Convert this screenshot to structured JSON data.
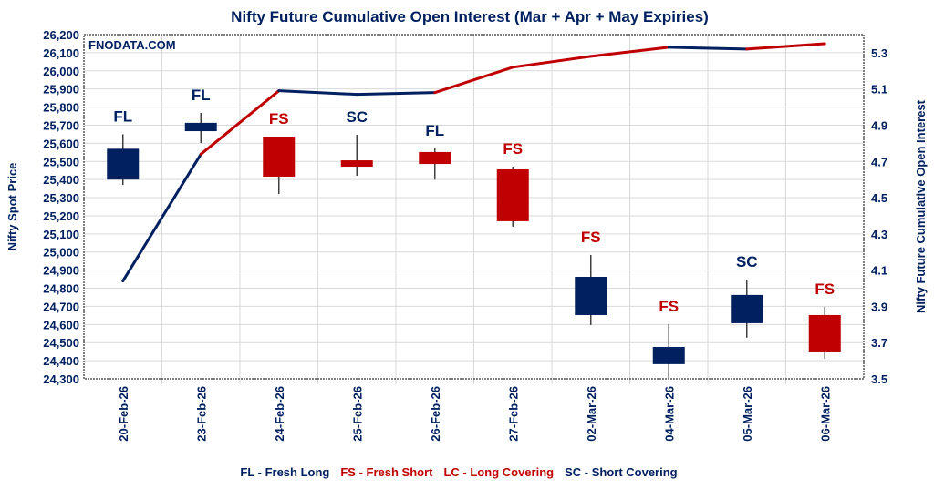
{
  "chart_data": {
    "type": "candlestick+line",
    "title": "Nifty Future Cumulative Open Interest (Mar + Apr + May Expiries)",
    "watermark": "FNODATA.COM",
    "ylabel": "Nifty Spot Price",
    "y2label": "Nifty Future Cumulative Open Interest",
    "ylim": [
      24300,
      26200
    ],
    "y2lim": [
      3.5,
      5.4
    ],
    "yticks": [
      "24,300",
      "24,400",
      "24,500",
      "24,600",
      "24,700",
      "24,800",
      "24,900",
      "25,000",
      "25,100",
      "25,200",
      "25,300",
      "25,400",
      "25,500",
      "25,600",
      "25,700",
      "25,800",
      "25,900",
      "26,000",
      "26,100",
      "26,200"
    ],
    "y2ticks": [
      "3.5",
      "3.7",
      "3.9",
      "4.1",
      "4.3",
      "4.5",
      "4.7",
      "4.9",
      "5.1",
      "5.3"
    ],
    "grid": true,
    "categories": [
      "20-Feb-26",
      "23-Feb-26",
      "24-Feb-26",
      "25-Feb-26",
      "26-Feb-26",
      "27-Feb-26",
      "02-Mar-26",
      "04-Mar-26",
      "05-Mar-26",
      "06-Mar-26"
    ],
    "candles": [
      {
        "open": 25400,
        "high": 25650,
        "low": 25370,
        "close": 25570,
        "label": "FL"
      },
      {
        "open": 25667,
        "high": 25768,
        "low": 25602,
        "close": 25713,
        "label": "FL"
      },
      {
        "open": 25637,
        "high": 25637,
        "low": 25320,
        "close": 25416,
        "label": "FS"
      },
      {
        "open": 25506,
        "high": 25647,
        "low": 25421,
        "close": 25471,
        "label": "SC"
      },
      {
        "open": 25552,
        "high": 25572,
        "low": 25400,
        "close": 25486,
        "label": "FL"
      },
      {
        "open": 25456,
        "high": 25471,
        "low": 25140,
        "close": 25170,
        "label": "FS"
      },
      {
        "open": 24652,
        "high": 24984,
        "low": 24597,
        "close": 24863,
        "label": "FS"
      },
      {
        "open": 24381,
        "high": 24602,
        "low": 24305,
        "close": 24476,
        "label": "FS"
      },
      {
        "open": 24607,
        "high": 24848,
        "low": 24527,
        "close": 24763,
        "label": "SC"
      },
      {
        "open": 24652,
        "high": 24697,
        "low": 24411,
        "close": 24446,
        "label": "FS"
      }
    ],
    "open_interest": [
      4.04,
      4.74,
      5.09,
      5.07,
      5.08,
      5.22,
      5.28,
      5.33,
      5.32,
      5.35
    ],
    "legend": [
      {
        "text": "FL - Fresh Long",
        "color": "#002060"
      },
      {
        "text": "FS - Fresh Short",
        "color": "#C00000"
      },
      {
        "text": "LC - Long Covering",
        "color": "#C00000"
      },
      {
        "text": "SC - Short Covering",
        "color": "#002060"
      }
    ],
    "legend_placement": "bottom",
    "colors": {
      "up": "#002060",
      "down": "#C00000",
      "FL": "#002060",
      "SC": "#002060",
      "FS": "#C00000",
      "LC": "#C00000",
      "grid": "#D9D9D9",
      "text": "#002060"
    }
  }
}
